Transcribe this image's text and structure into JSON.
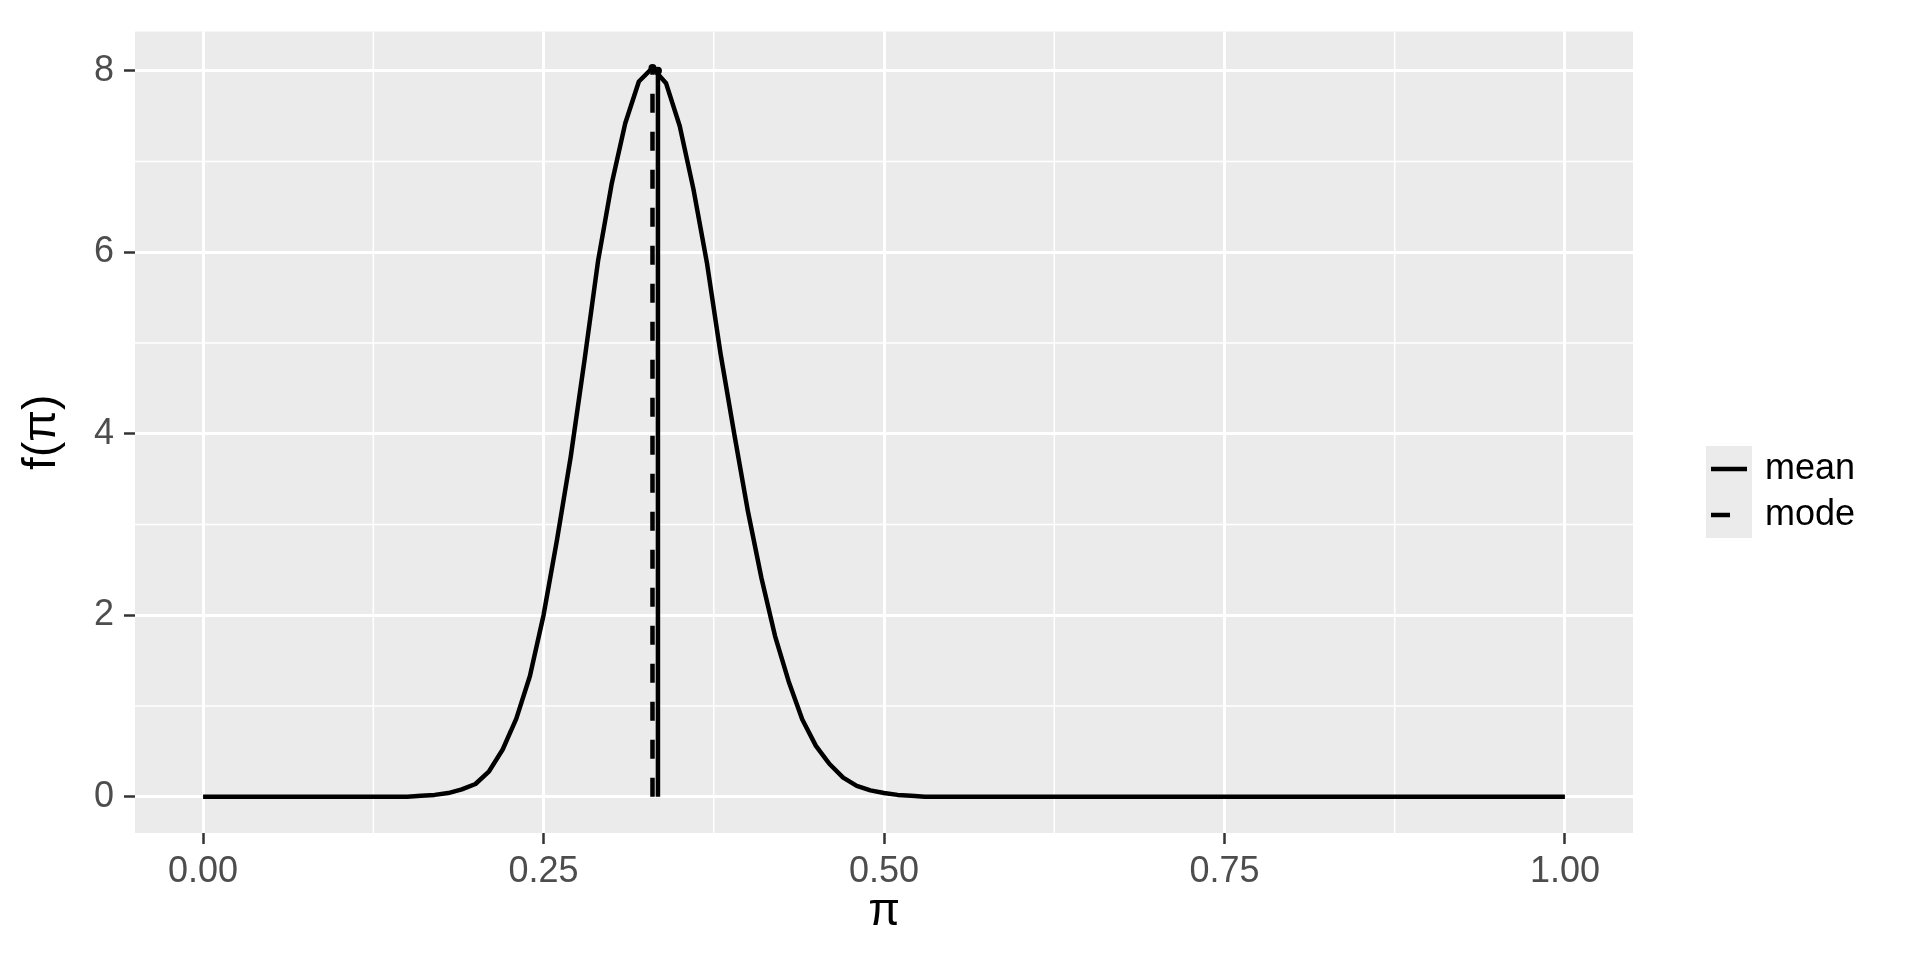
{
  "chart_data": {
    "type": "line",
    "xlabel": "π",
    "ylabel": "f(π)",
    "x": [
      0,
      0.01,
      0.02,
      0.03,
      0.04,
      0.05,
      0.06,
      0.07,
      0.08,
      0.09,
      0.1,
      0.11,
      0.12,
      0.13,
      0.14,
      0.15,
      0.16,
      0.17,
      0.18,
      0.19,
      0.2,
      0.21,
      0.22,
      0.23,
      0.24,
      0.25,
      0.26,
      0.27,
      0.28,
      0.29,
      0.3,
      0.31,
      0.32,
      0.33,
      0.34,
      0.35,
      0.36,
      0.37,
      0.38,
      0.39,
      0.4,
      0.41,
      0.42,
      0.43,
      0.44,
      0.45,
      0.46,
      0.47,
      0.48,
      0.49,
      0.5,
      0.51,
      0.52,
      0.53,
      0.54,
      0.55,
      0.56,
      0.57,
      0.58,
      0.59,
      0.6,
      0.61,
      0.62,
      0.63,
      0.64,
      0.65,
      0.66,
      0.67,
      0.68,
      0.69,
      0.7,
      0.71,
      0.72,
      0.73,
      0.74,
      0.75,
      0.76,
      0.77,
      0.78,
      0.79,
      0.8,
      0.81,
      0.82,
      0.83,
      0.84,
      0.85,
      0.86,
      0.87,
      0.88,
      0.89,
      0.9,
      0.91,
      0.92,
      0.93,
      0.94,
      0.95,
      0.96,
      0.97,
      0.98,
      0.99,
      1
    ],
    "xlim": [
      -0.05,
      1.05
    ],
    "ylim": [
      -0.4,
      8.43
    ],
    "xticks": [
      {
        "value": 0,
        "label": "0.00"
      },
      {
        "value": 0.25,
        "label": "0.25"
      },
      {
        "value": 0.5,
        "label": "0.50"
      },
      {
        "value": 0.75,
        "label": "0.75"
      },
      {
        "value": 1,
        "label": "1.00"
      }
    ],
    "yticks": [
      0,
      2,
      4,
      6,
      8
    ],
    "grid": true,
    "legend": "right",
    "series": [
      {
        "color": "#000000",
        "values": [
          0,
          0,
          0,
          0,
          0,
          0,
          0,
          0,
          0,
          0,
          0,
          0,
          0,
          0,
          0,
          0,
          0.01,
          0.02,
          0.04,
          0.08,
          0.14,
          0.28,
          0.52,
          0.86,
          1.33,
          2.0,
          2.84,
          3.75,
          4.8,
          5.9,
          6.75,
          7.42,
          7.88,
          8.03,
          7.86,
          7.39,
          6.7,
          5.88,
          4.88,
          4.0,
          3.15,
          2.41,
          1.77,
          1.27,
          0.85,
          0.56,
          0.36,
          0.21,
          0.12,
          0.07,
          0.04,
          0.02,
          0.01,
          0,
          0,
          0,
          0,
          0,
          0,
          0,
          0,
          0,
          0,
          0,
          0,
          0,
          0,
          0,
          0,
          0,
          0,
          0,
          0,
          0,
          0,
          0,
          0,
          0,
          0,
          0,
          0,
          0,
          0,
          0,
          0,
          0,
          0,
          0,
          0,
          0,
          0,
          0,
          0,
          0,
          0,
          0,
          0,
          0,
          0,
          0,
          0
        ]
      },
      {
        "type": "lollipop",
        "name": "mean",
        "color": "#000000",
        "x": [
          0.334
        ],
        "values": [
          8.0
        ]
      },
      {
        "type": "lollipop",
        "name": "mode",
        "color": "#000000",
        "x": [
          0.33
        ],
        "values": [
          8.03
        ],
        "line_style": "dashed"
      }
    ]
  }
}
